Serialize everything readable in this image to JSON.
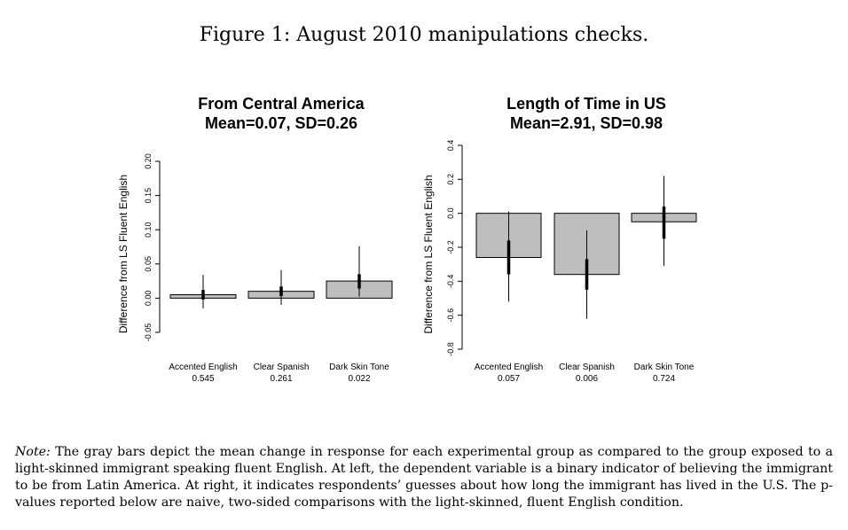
{
  "figure_title": "Figure 1: August 2010 manipulations checks.",
  "note": {
    "label": "Note:",
    "text": "The gray bars depict the mean change in response for each experimental group as compared to the group exposed to a light-skinned immigrant speaking fluent English. At left, the dependent variable is a binary indicator of believing the immigrant to be from Latin America. At right, it indicates respondents’ guesses about how long the immigrant has lived in the U.S. The p-values reported below are naive, two-sided comparisons with the light-skinned, fluent English condition."
  },
  "colors": {
    "bar_fill": "#bebebe",
    "stroke": "#000000"
  },
  "chart_data": [
    {
      "type": "bar",
      "title": "From Central America",
      "subtitle": "Mean=0.07, SD=0.26",
      "ylabel": "Difference from LS Fluent English",
      "ylim": [
        -0.05,
        0.2
      ],
      "yticks": [
        "-0.05",
        "0.00",
        "0.05",
        "0.10",
        "0.15",
        "0.20"
      ],
      "categories": [
        "Accented English",
        "Clear Spanish",
        "Dark Skin Tone"
      ],
      "p_values": [
        "0.545",
        "0.261",
        "0.022"
      ],
      "values": [
        0.005,
        0.01,
        0.025
      ],
      "ci_thick": [
        [
          -0.002,
          0.012
        ],
        [
          0.003,
          0.017
        ],
        [
          0.014,
          0.035
        ]
      ],
      "ci_thin": [
        [
          -0.015,
          0.034
        ],
        [
          -0.01,
          0.041
        ],
        [
          0.002,
          0.076
        ]
      ]
    },
    {
      "type": "bar",
      "title": "Length of Time in US",
      "subtitle": "Mean=2.91, SD=0.98",
      "ylabel": "Difference from LS Fluent English",
      "ylim": [
        -0.8,
        0.4
      ],
      "yticks": [
        "-0.8",
        "-0.6",
        "-0.4",
        "-0.2",
        "0.0",
        "0.2",
        "0.4"
      ],
      "categories": [
        "Accented English",
        "Clear Spanish",
        "Dark Skin Tone"
      ],
      "p_values": [
        "0.057",
        "0.006",
        "0.724"
      ],
      "values": [
        -0.26,
        -0.36,
        -0.05
      ],
      "ci_thick": [
        [
          -0.36,
          -0.16
        ],
        [
          -0.45,
          -0.27
        ],
        [
          -0.15,
          0.04
        ]
      ],
      "ci_thin": [
        [
          -0.52,
          0.01
        ],
        [
          -0.62,
          -0.1
        ],
        [
          -0.31,
          0.22
        ]
      ]
    }
  ]
}
